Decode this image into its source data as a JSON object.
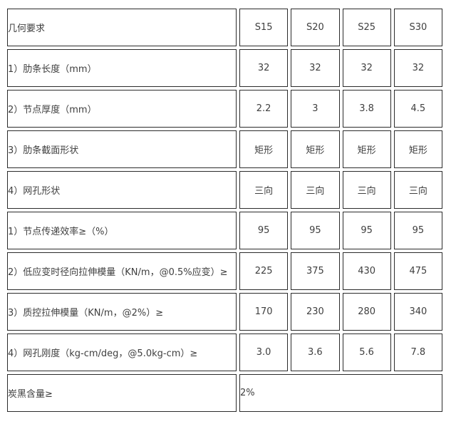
{
  "table": {
    "header": {
      "title": "几何要求",
      "columns": [
        "S15",
        "S20",
        "S25",
        "S30"
      ]
    },
    "rows": [
      {
        "label": "1）肋条长度（mm）",
        "values": [
          "32",
          "32",
          "32",
          "32"
        ]
      },
      {
        "label": "2）节点厚度（mm）",
        "values": [
          "2.2",
          "3",
          "3.8",
          "4.5"
        ]
      },
      {
        "label": "3）肋条截面形状",
        "values": [
          "矩形",
          "矩形",
          "矩形",
          "矩形"
        ]
      },
      {
        "label": "4）网孔形状",
        "values": [
          "三向",
          "三向",
          "三向",
          "三向"
        ]
      },
      {
        "label": "1）节点传递效率≥（%）",
        "values": [
          "95",
          "95",
          "95",
          "95"
        ]
      },
      {
        "label": "2）低应变时径向拉伸模量（KN/m，@0.5%应变）≥",
        "values": [
          "225",
          "375",
          "430",
          "475"
        ]
      },
      {
        "label": "3）质控拉伸模量（KN/m，@2%）≥",
        "values": [
          "170",
          "230",
          "280",
          "340"
        ]
      },
      {
        "label": "4）网孔刚度（kg-cm/deg，@5.0kg-cm）≥",
        "values": [
          "3.0",
          "3.6",
          "5.6",
          "7.8"
        ]
      }
    ],
    "footer": {
      "label": "炭黑含量≥",
      "value": "2%"
    }
  },
  "colors": {
    "border": "#2b2b2b",
    "text": "#3f3f3f",
    "background": "#ffffff"
  }
}
